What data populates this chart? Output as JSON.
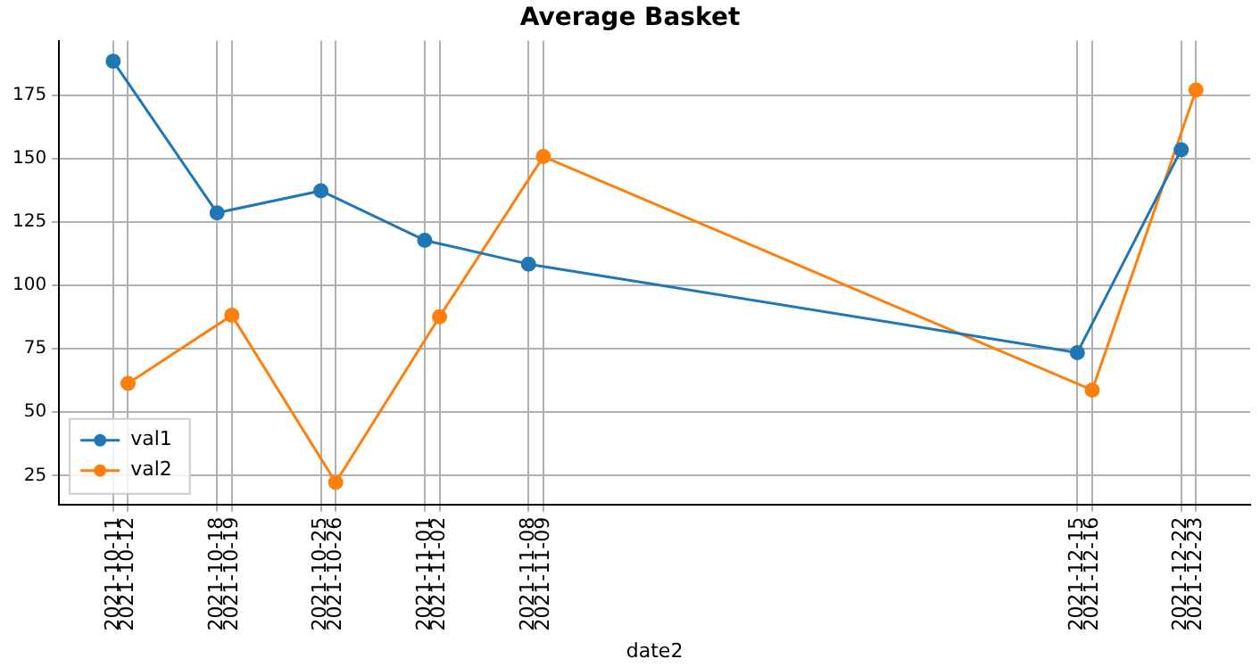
{
  "chart_data": {
    "type": "line",
    "title": "Average Basket",
    "xlabel": "date2",
    "xlim": [
      "2021-10-07T08:24",
      "2021-12-26T15:36"
    ],
    "xticks": [
      "2021-10-11",
      "2021-10-12",
      "2021-10-18",
      "2021-10-19",
      "2021-10-25",
      "2021-10-26",
      "2021-11-01",
      "2021-11-02",
      "2021-11-08",
      "2021-11-09",
      "2021-12-15",
      "2021-12-16",
      "2021-12-22",
      "2021-12-23"
    ],
    "ylim": [
      13.6,
      196.5
    ],
    "yticks": [
      25,
      50,
      75,
      100,
      125,
      150,
      175
    ],
    "series": [
      {
        "name": "val1",
        "color": "#1f77b4",
        "x": [
          "2021-10-11",
          "2021-10-18",
          "2021-10-25",
          "2021-11-01",
          "2021-11-08",
          "2021-12-15",
          "2021-12-22"
        ],
        "values": [
          188.4,
          128.6,
          137.3,
          117.8,
          108.4,
          73.5,
          153.5
        ]
      },
      {
        "name": "val2",
        "color": "#ff7f0e",
        "x": [
          "2021-10-12",
          "2021-10-19",
          "2021-10-26",
          "2021-11-02",
          "2021-11-09",
          "2021-12-16",
          "2021-12-23"
        ],
        "values": [
          61.3,
          88.2,
          22.3,
          87.6,
          150.8,
          58.7,
          177
        ]
      }
    ],
    "grid": true,
    "legend": "bottom left",
    "marker": "circle",
    "line_style": "solid"
  }
}
